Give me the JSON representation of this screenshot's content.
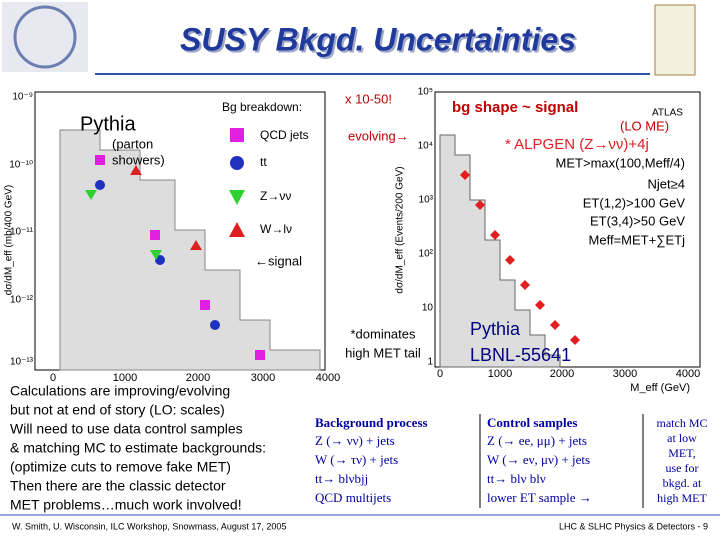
{
  "header": {
    "title": "SUSY Bkgd. Uncertainties"
  },
  "left_plot": {
    "generator": "Pythia",
    "generator_note": [
      "(parton",
      "showers)"
    ],
    "legend_title": "Bg breakdown:",
    "legend": [
      "QCD jets",
      "tt",
      "Z→νν",
      "W→lν"
    ],
    "y_label": "dσ/dM_eff (mb/400 GeV)",
    "x_ticks": [
      "0",
      "1000",
      "2000",
      "3000",
      "4000"
    ],
    "y_ticks": [
      "10⁻⁹",
      "10⁻¹⁰",
      "10⁻¹¹",
      "10⁻¹²",
      "10⁻¹³"
    ]
  },
  "annotations": {
    "scale": "x 10-50!",
    "evolving": "evolving→",
    "signal": "←signal",
    "dominates": [
      "*dominates",
      "high MET tail"
    ]
  },
  "right_plot": {
    "heading": "bg shape ~ signal",
    "experiment": "ATLAS",
    "lo_me": "(LO ME)",
    "alpgen": "* ALPGEN (Z→νν)+4j",
    "cuts": [
      "MET>max(100,Meff/4)",
      "Njet≥4",
      "ET(1,2)>100 GeV",
      "ET(3,4)>50 GeV",
      "Meff=MET+∑ETj"
    ],
    "pythia": "Pythia",
    "ref": "LBNL-55641",
    "x_label": "M_eff (GeV)",
    "y_label": "dσ/dM_eff (Events/200 GeV)",
    "x_ticks": [
      "0",
      "1000",
      "2000",
      "3000",
      "4000"
    ],
    "y_ticks": [
      "10⁵",
      "10⁴",
      "10³",
      "10²",
      "10",
      "1"
    ]
  },
  "body": [
    "Calculations are improving/evolving",
    "but not at end of story (LO: scales)",
    "Will need to use data control samples",
    "& matching MC to estimate backgrounds:",
    "(optimize cuts to remove fake MET)",
    "Then there are the classic detector",
    "MET problems…much work involved!"
  ],
  "table": {
    "headers": [
      "Background process",
      "Control samples"
    ],
    "rows": [
      [
        "Z (→ νν) + jets",
        "Z (→ ee, μμ) + jets"
      ],
      [
        "W (→ τν) + jets",
        "W (→ eν, μν) + jets"
      ],
      [
        "tt→ blνbjj",
        "tt→ blν blν"
      ],
      [
        "QCD multijets",
        "lower ET sample →"
      ]
    ]
  },
  "note": [
    "match MC",
    "at low",
    "MET,",
    "use for",
    "bkgd. at",
    "high MET"
  ],
  "footer": {
    "left": "W. Smith, U. Wisconsin, ILC Workshop, Snowmass, August 17, 2005",
    "right": "LHC & SLHC Physics & Detectors - 9"
  }
}
